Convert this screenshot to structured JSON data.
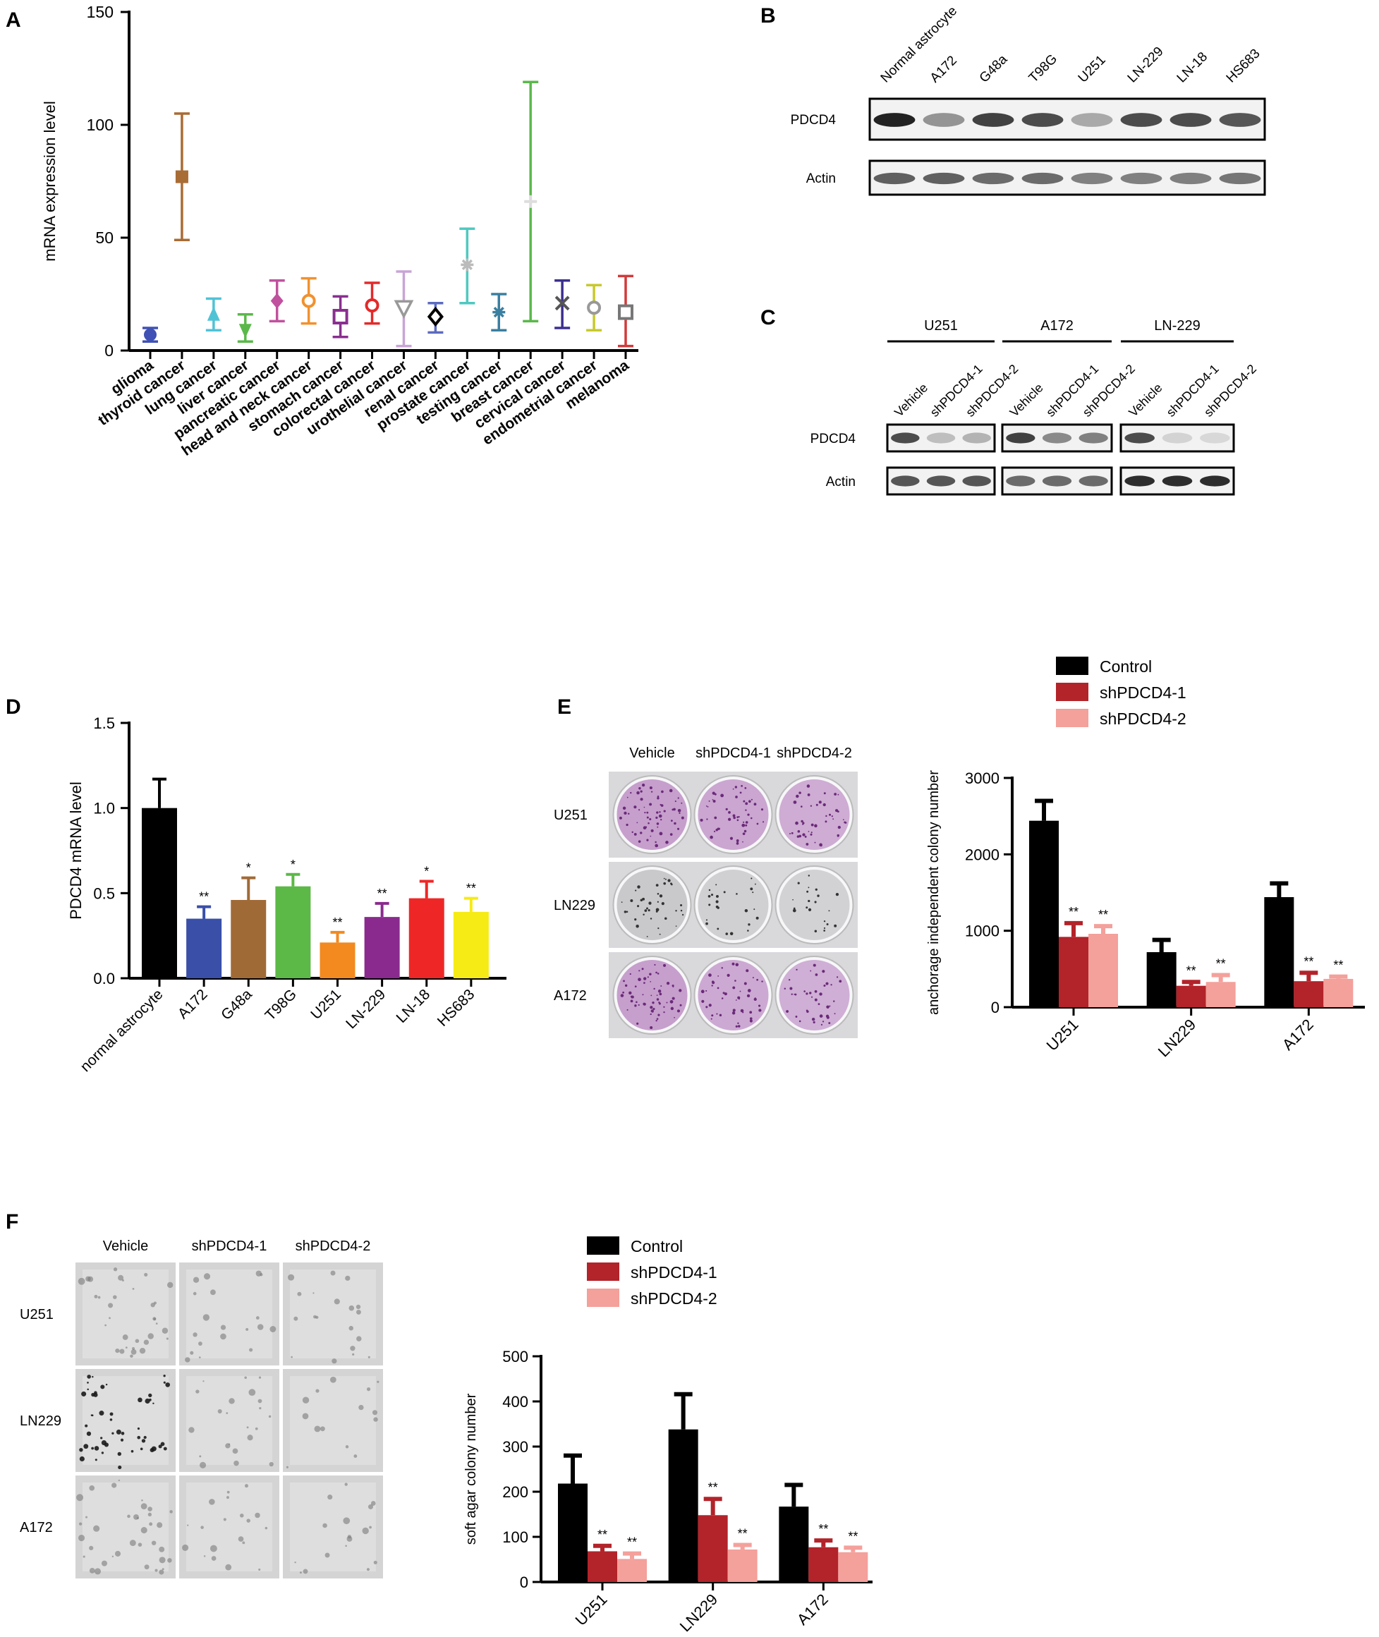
{
  "panels": {
    "A": "A",
    "B": "B",
    "C": "C",
    "D": "D",
    "E": "E",
    "F": "F"
  },
  "colors": {
    "control": "#000000",
    "sh1": "#b3232a",
    "sh2": "#f4a09b",
    "band": "#222222",
    "blotBg": "#f2f2f2"
  },
  "chart_data": [
    {
      "panel": "A",
      "type": "scatter",
      "ylabel": "mRNA expression level",
      "ylim": [
        0,
        150
      ],
      "yticks": [
        "0",
        "50",
        "100",
        "150"
      ],
      "categories": [
        "glioma",
        "thyroid cancer",
        "lung cancer",
        "liver cancer",
        "pancreatic cancer",
        "head and neck cancer",
        "stomach cancer",
        "colorectal cancer",
        "urothelial cancer",
        "renal cancer",
        "prostate cancer",
        "testing cancer",
        "breast cancer",
        "cervical cancer",
        "endometrial cancer",
        "melanoma"
      ],
      "points": [
        {
          "mean": 7,
          "low": 4,
          "high": 10,
          "color": "#3f51b5",
          "marker": "circle-filled"
        },
        {
          "mean": 77,
          "low": 49,
          "high": 105,
          "color": "#a86c35",
          "marker": "square-filled"
        },
        {
          "mean": 16,
          "low": 9,
          "high": 23,
          "color": "#4fc3d6",
          "marker": "triangle-up"
        },
        {
          "mean": 9,
          "low": 4,
          "high": 16,
          "color": "#5ab84a",
          "marker": "triangle-down"
        },
        {
          "mean": 22,
          "low": 13,
          "high": 31,
          "color": "#c0519e",
          "marker": "diamond-filled"
        },
        {
          "mean": 22,
          "low": 12,
          "high": 32,
          "color": "#f1912f",
          "marker": "circle-open"
        },
        {
          "mean": 15,
          "low": 6,
          "high": 24,
          "color": "#8a2f8f",
          "marker": "square-open"
        },
        {
          "mean": 20,
          "low": 12,
          "high": 30,
          "color": "#e32a2a",
          "marker": "circle-open"
        },
        {
          "mean": 19,
          "low": 2,
          "high": 35,
          "color": "#c9a4d6",
          "marker": "triangle-open"
        },
        {
          "mean": 15,
          "low": 8,
          "high": 21,
          "color": "#5c6bc0",
          "marker": "diamond-open"
        },
        {
          "mean": 38,
          "low": 21,
          "high": 54,
          "color": "#4ec9c0",
          "marker": "star"
        },
        {
          "mean": 17,
          "low": 9,
          "high": 25,
          "color": "#3b7fa0",
          "marker": "star"
        },
        {
          "mean": 66,
          "low": 13,
          "high": 119,
          "color": "#5ab84a",
          "marker": "cross"
        },
        {
          "mean": 21,
          "low": 10,
          "high": 31,
          "color": "#3a2f8f",
          "marker": "x"
        },
        {
          "mean": 19,
          "low": 9,
          "high": 29,
          "color": "#c7c92c",
          "marker": "circle-open"
        },
        {
          "mean": 17,
          "low": 2,
          "high": 33,
          "color": "#d23a3a",
          "marker": "square-open"
        }
      ]
    },
    {
      "panel": "D",
      "type": "bar",
      "ylabel": "PDCD4 mRNA level",
      "ylim": [
        0,
        1.5
      ],
      "yticks": [
        "0.0",
        "0.5",
        "1.0",
        "1.5"
      ],
      "categories": [
        "normal astrocyte",
        "A172",
        "G48a",
        "T98G",
        "U251",
        "LN-229",
        "LN-18",
        "HS683"
      ],
      "values": [
        1.0,
        0.35,
        0.46,
        0.54,
        0.21,
        0.36,
        0.47,
        0.39
      ],
      "errors": [
        0.17,
        0.07,
        0.13,
        0.07,
        0.06,
        0.08,
        0.1,
        0.08
      ],
      "colors": [
        "#000000",
        "#3a4fa8",
        "#a06a36",
        "#5cb847",
        "#f28a20",
        "#8a2a8e",
        "#ee2726",
        "#f6eb14"
      ],
      "annotations": [
        "",
        "**",
        "*",
        "*",
        "**",
        "**",
        "*",
        "**"
      ]
    },
    {
      "panel": "E",
      "type": "bar",
      "ylabel": "anchorage independent colony number",
      "ylim": [
        0,
        3000
      ],
      "yticks": [
        "0",
        "1000",
        "2000",
        "3000"
      ],
      "categories": [
        "U251",
        "LN229",
        "A172"
      ],
      "legend": [
        "Control",
        "shPDCD4-1",
        "shPDCD4-2"
      ],
      "series": [
        {
          "name": "Control",
          "values": [
            2440,
            720,
            1440
          ],
          "errors": [
            260,
            160,
            180
          ],
          "annotations": [
            "",
            "",
            ""
          ]
        },
        {
          "name": "shPDCD4-1",
          "values": [
            920,
            280,
            340
          ],
          "errors": [
            180,
            50,
            110
          ],
          "annotations": [
            "**",
            "**",
            "**"
          ]
        },
        {
          "name": "shPDCD4-2",
          "values": [
            960,
            330,
            370
          ],
          "errors": [
            100,
            90,
            30
          ],
          "annotations": [
            "**",
            "**",
            "**"
          ]
        }
      ]
    },
    {
      "panel": "F",
      "type": "bar",
      "ylabel": "soft agar colony number",
      "ylim": [
        0,
        500
      ],
      "yticks": [
        "0",
        "100",
        "200",
        "300",
        "400",
        "500"
      ],
      "categories": [
        "U251",
        "LN229",
        "A172"
      ],
      "legend": [
        "Control",
        "shPDCD4-1",
        "shPDCD4-2"
      ],
      "series": [
        {
          "name": "Control",
          "values": [
            218,
            338,
            167
          ],
          "errors": [
            62,
            78,
            48
          ],
          "annotations": [
            "",
            "",
            ""
          ]
        },
        {
          "name": "shPDCD4-1",
          "values": [
            68,
            148,
            77
          ],
          "errors": [
            12,
            36,
            15
          ],
          "annotations": [
            "**",
            "**",
            "**"
          ]
        },
        {
          "name": "shPDCD4-2",
          "values": [
            51,
            72,
            66
          ],
          "errors": [
            12,
            10,
            10
          ],
          "annotations": [
            "**",
            "**",
            "**"
          ]
        }
      ]
    }
  ],
  "blotB": {
    "lanes": [
      "Normal astrocyte",
      "A172",
      "G48a",
      "T98G",
      "U251",
      "LN-229",
      "LN-18",
      "HS683"
    ],
    "rows": [
      {
        "label": "PDCD4",
        "intensity": [
          1.0,
          0.45,
          0.85,
          0.8,
          0.35,
          0.8,
          0.8,
          0.75
        ]
      },
      {
        "label": "Actin",
        "intensity": [
          0.7,
          0.7,
          0.65,
          0.65,
          0.55,
          0.55,
          0.55,
          0.6
        ]
      }
    ]
  },
  "blotC": {
    "groups": [
      "U251",
      "A172",
      "LN-229"
    ],
    "lanes": [
      "Vehicle",
      "shPDCD4-1",
      "shPDCD4-2"
    ],
    "rows": [
      {
        "label": "PDCD4",
        "intensity": [
          0.8,
          0.25,
          0.3,
          0.85,
          0.5,
          0.55,
          0.8,
          0.15,
          0.12
        ]
      },
      {
        "label": "Actin",
        "intensity": [
          0.75,
          0.75,
          0.75,
          0.65,
          0.65,
          0.65,
          0.95,
          0.95,
          0.95
        ]
      }
    ]
  },
  "plateE": {
    "columns": [
      "Vehicle",
      "shPDCD4-1",
      "shPDCD4-2"
    ],
    "rows": [
      "U251",
      "LN229",
      "A172"
    ],
    "density": [
      [
        0.9,
        0.75,
        0.65
      ],
      [
        0.55,
        0.35,
        0.3
      ],
      [
        0.9,
        0.7,
        0.6
      ]
    ]
  },
  "agarF": {
    "columns": [
      "Vehicle",
      "shPDCD4-1",
      "shPDCD4-2"
    ],
    "rows": [
      "U251",
      "LN229",
      "A172"
    ],
    "density": [
      [
        0.6,
        0.35,
        0.35
      ],
      [
        0.95,
        0.4,
        0.25
      ],
      [
        0.65,
        0.35,
        0.3
      ]
    ]
  }
}
